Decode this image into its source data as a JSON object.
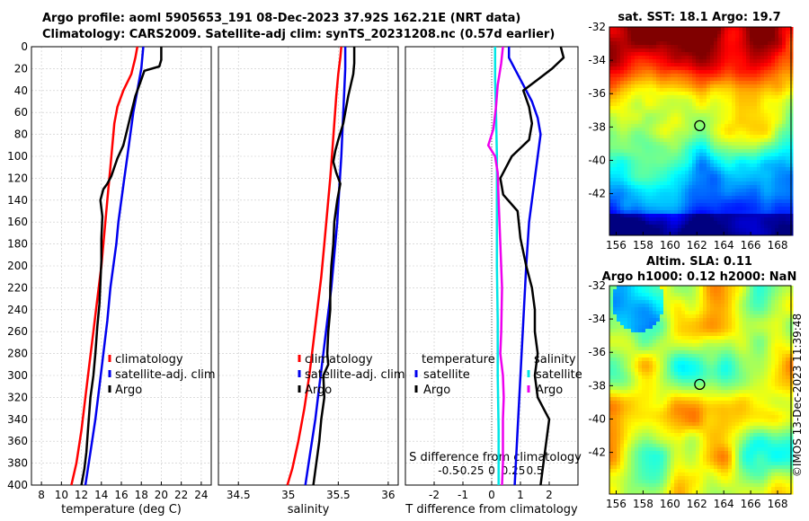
{
  "title": {
    "line1": "Argo profile: aoml 5905653_191 08-Dec-2023 37.92S 162.21E (NRT data)",
    "line2": "Climatology: CARS2009. Satellite-adj clim: synTS_20231208.nc (0.57d earlier)"
  },
  "credit": "©IMOS 13-Dec-2023 11:39:48",
  "colors": {
    "clim": "#ff0000",
    "sat": "#0000ee",
    "argo": "#000000",
    "sal_sat": "#00e5e5",
    "sal_argo": "#ee00ee"
  },
  "chart_data": [
    {
      "type": "line",
      "name": "temperature-profile",
      "xlabel": "temperature (deg C)",
      "ylabel": "",
      "xlim": [
        7,
        25
      ],
      "ylim": [
        400,
        0
      ],
      "xticks": [
        8,
        10,
        12,
        14,
        16,
        18,
        20,
        22,
        24
      ],
      "yticks": [
        0,
        20,
        40,
        60,
        80,
        100,
        120,
        140,
        160,
        180,
        200,
        220,
        240,
        260,
        280,
        300,
        320,
        340,
        360,
        380,
        400
      ],
      "legend": [
        "climatology",
        "satellite-adj. clim",
        "Argo"
      ],
      "series": [
        {
          "name": "climatology",
          "color_key": "clim",
          "points": [
            [
              17.6,
              0
            ],
            [
              17.4,
              10
            ],
            [
              17.0,
              25
            ],
            [
              16.2,
              40
            ],
            [
              15.6,
              55
            ],
            [
              15.3,
              70
            ],
            [
              15.1,
              90
            ],
            [
              14.9,
              110
            ],
            [
              14.6,
              140
            ],
            [
              14.3,
              170
            ],
            [
              14.0,
              200
            ],
            [
              13.6,
              230
            ],
            [
              13.2,
              260
            ],
            [
              12.8,
              290
            ],
            [
              12.4,
              320
            ],
            [
              12.0,
              350
            ],
            [
              11.5,
              380
            ],
            [
              11.0,
              400
            ]
          ]
        },
        {
          "name": "satellite-adj. clim",
          "color_key": "sat",
          "points": [
            [
              18.2,
              0
            ],
            [
              18.0,
              20
            ],
            [
              17.6,
              40
            ],
            [
              17.2,
              60
            ],
            [
              16.9,
              80
            ],
            [
              16.6,
              100
            ],
            [
              16.3,
              120
            ],
            [
              16.0,
              140
            ],
            [
              15.7,
              160
            ],
            [
              15.5,
              180
            ],
            [
              15.2,
              200
            ],
            [
              14.9,
              220
            ],
            [
              14.6,
              250
            ],
            [
              14.2,
              280
            ],
            [
              13.8,
              310
            ],
            [
              13.4,
              340
            ],
            [
              12.9,
              370
            ],
            [
              12.4,
              400
            ]
          ]
        },
        {
          "name": "Argo",
          "color_key": "argo",
          "points": [
            [
              20.0,
              0
            ],
            [
              20.0,
              12
            ],
            [
              19.8,
              18
            ],
            [
              18.3,
              22
            ],
            [
              18.0,
              30
            ],
            [
              17.4,
              45
            ],
            [
              17.0,
              60
            ],
            [
              16.6,
              75
            ],
            [
              16.2,
              90
            ],
            [
              15.6,
              102
            ],
            [
              15.3,
              110
            ],
            [
              15.0,
              118
            ],
            [
              14.6,
              125
            ],
            [
              14.2,
              130
            ],
            [
              13.9,
              140
            ],
            [
              14.1,
              155
            ],
            [
              14.0,
              175
            ],
            [
              14.0,
              195
            ],
            [
              13.9,
              215
            ],
            [
              13.8,
              235
            ],
            [
              13.6,
              255
            ],
            [
              13.4,
              280
            ],
            [
              13.2,
              300
            ],
            [
              12.9,
              320
            ],
            [
              12.7,
              345
            ],
            [
              12.5,
              370
            ],
            [
              12.3,
              385
            ],
            [
              12.0,
              400
            ]
          ]
        }
      ]
    },
    {
      "type": "line",
      "name": "salinity-profile",
      "xlabel": "salinity",
      "ylabel": "",
      "xlim": [
        34.3,
        36.1
      ],
      "ylim": [
        400,
        0
      ],
      "xticks": [
        34.5,
        35,
        35.5,
        36
      ],
      "legend": [
        "climatology",
        "satellite-adj. clim",
        "Argo"
      ],
      "series": [
        {
          "name": "climatology",
          "color_key": "clim",
          "points": [
            [
              35.53,
              0
            ],
            [
              35.52,
              10
            ],
            [
              35.5,
              25
            ],
            [
              35.48,
              45
            ],
            [
              35.46,
              70
            ],
            [
              35.44,
              95
            ],
            [
              35.42,
              120
            ],
            [
              35.39,
              150
            ],
            [
              35.36,
              180
            ],
            [
              35.33,
              210
            ],
            [
              35.29,
              240
            ],
            [
              35.25,
              270
            ],
            [
              35.21,
              300
            ],
            [
              35.16,
              330
            ],
            [
              35.1,
              360
            ],
            [
              35.04,
              385
            ],
            [
              34.99,
              400
            ]
          ]
        },
        {
          "name": "satellite-adj. clim",
          "color_key": "sat",
          "points": [
            [
              35.57,
              0
            ],
            [
              35.57,
              20
            ],
            [
              35.56,
              40
            ],
            [
              35.55,
              60
            ],
            [
              35.54,
              80
            ],
            [
              35.53,
              100
            ],
            [
              35.51,
              130
            ],
            [
              35.49,
              160
            ],
            [
              35.46,
              190
            ],
            [
              35.43,
              220
            ],
            [
              35.39,
              250
            ],
            [
              35.35,
              280
            ],
            [
              35.31,
              310
            ],
            [
              35.27,
              340
            ],
            [
              35.22,
              370
            ],
            [
              35.17,
              400
            ]
          ]
        },
        {
          "name": "Argo",
          "color_key": "argo",
          "points": [
            [
              35.66,
              0
            ],
            [
              35.66,
              15
            ],
            [
              35.65,
              25
            ],
            [
              35.6,
              45
            ],
            [
              35.55,
              70
            ],
            [
              35.5,
              85
            ],
            [
              35.47,
              95
            ],
            [
              35.45,
              105
            ],
            [
              35.48,
              115
            ],
            [
              35.52,
              125
            ],
            [
              35.49,
              140
            ],
            [
              35.46,
              160
            ],
            [
              35.45,
              180
            ],
            [
              35.43,
              200
            ],
            [
              35.42,
              220
            ],
            [
              35.42,
              240
            ],
            [
              35.4,
              260
            ],
            [
              35.39,
              280
            ],
            [
              35.4,
              290
            ],
            [
              35.35,
              300
            ],
            [
              35.36,
              320
            ],
            [
              35.33,
              340
            ],
            [
              35.31,
              360
            ],
            [
              35.28,
              380
            ],
            [
              35.25,
              400
            ]
          ]
        }
      ]
    },
    {
      "type": "line",
      "name": "difference-from-climatology",
      "xlabel": "T difference from climatology",
      "x2label": "S difference from climatology",
      "xlim": [
        -3,
        3
      ],
      "ylim": [
        400,
        0
      ],
      "xticks": [
        -2,
        -1,
        0,
        1,
        2
      ],
      "x2ticks": [
        -0.5,
        -0.25,
        0,
        0.25,
        0.5
      ],
      "x2ticklabels": [
        "-0.5",
        "-0.25",
        "0",
        "0.25",
        "0.5"
      ],
      "legend_left_title": "temperature",
      "legend_right_title": "salinity",
      "legend_left": [
        "satellite",
        "Argo"
      ],
      "legend_right": [
        "satellite",
        "Argo"
      ],
      "series": [
        {
          "name": "temperature satellite",
          "color_key": "sat",
          "points": [
            [
              0.6,
              0
            ],
            [
              0.6,
              10
            ],
            [
              0.8,
              20
            ],
            [
              1.0,
              30
            ],
            [
              1.4,
              50
            ],
            [
              1.6,
              65
            ],
            [
              1.7,
              80
            ],
            [
              1.6,
              100
            ],
            [
              1.5,
              120
            ],
            [
              1.4,
              140
            ],
            [
              1.3,
              160
            ],
            [
              1.2,
              200
            ],
            [
              1.1,
              250
            ],
            [
              1.0,
              300
            ],
            [
              0.9,
              350
            ],
            [
              0.8,
              400
            ]
          ]
        },
        {
          "name": "temperature Argo",
          "color_key": "argo",
          "points": [
            [
              2.4,
              0
            ],
            [
              2.5,
              10
            ],
            [
              2.1,
              20
            ],
            [
              1.6,
              30
            ],
            [
              1.1,
              40
            ],
            [
              1.3,
              55
            ],
            [
              1.4,
              70
            ],
            [
              1.3,
              85
            ],
            [
              0.7,
              100
            ],
            [
              0.5,
              110
            ],
            [
              0.3,
              120
            ],
            [
              0.4,
              135
            ],
            [
              0.9,
              150
            ],
            [
              1.0,
              175
            ],
            [
              1.2,
              200
            ],
            [
              1.4,
              220
            ],
            [
              1.5,
              240
            ],
            [
              1.5,
              260
            ],
            [
              1.6,
              280
            ],
            [
              1.5,
              300
            ],
            [
              1.6,
              320
            ],
            [
              2.0,
              340
            ],
            [
              1.9,
              360
            ],
            [
              1.8,
              380
            ],
            [
              1.7,
              400
            ]
          ]
        },
        {
          "name": "salinity satellite",
          "color_key": "sal_sat",
          "points": [
            [
              0.04,
              0
            ],
            [
              0.04,
              30
            ],
            [
              0.05,
              60
            ],
            [
              0.06,
              100
            ],
            [
              0.06,
              150
            ],
            [
              0.06,
              200
            ],
            [
              0.07,
              250
            ],
            [
              0.07,
              300
            ],
            [
              0.08,
              350
            ],
            [
              0.08,
              400
            ]
          ]
        },
        {
          "name": "salinity Argo",
          "color_key": "sal_argo",
          "points": [
            [
              0.13,
              0
            ],
            [
              0.11,
              15
            ],
            [
              0.07,
              35
            ],
            [
              0.05,
              55
            ],
            [
              0.02,
              75
            ],
            [
              -0.02,
              85
            ],
            [
              -0.04,
              90
            ],
            [
              0.0,
              95
            ],
            [
              0.04,
              100
            ],
            [
              0.07,
              115
            ],
            [
              0.08,
              140
            ],
            [
              0.1,
              180
            ],
            [
              0.12,
              220
            ],
            [
              0.11,
              260
            ],
            [
              0.1,
              280
            ],
            [
              0.13,
              300
            ],
            [
              0.14,
              320
            ],
            [
              0.13,
              340
            ],
            [
              0.13,
              360
            ],
            [
              0.13,
              380
            ],
            [
              0.12,
              400
            ]
          ]
        }
      ]
    },
    {
      "type": "heatmap",
      "name": "satellite-sst-map",
      "title": "sat. SST: 18.1 Argo: 19.7",
      "xticks": [
        156,
        158,
        160,
        162,
        164,
        166,
        168
      ],
      "yticks": [
        -32,
        -34,
        -36,
        -38,
        -40,
        -42
      ],
      "xlim": [
        155.5,
        169
      ],
      "ylim": [
        -44.5,
        -32
      ],
      "argo_position": [
        162.21,
        -37.92
      ]
    },
    {
      "type": "heatmap",
      "name": "altimetry-sla-map",
      "title_line1": "Altim. SLA: 0.11",
      "title_line2": "Argo h1000: 0.12 h2000: NaN",
      "xticks": [
        156,
        158,
        160,
        162,
        164,
        166,
        168
      ],
      "yticks": [
        -32,
        -34,
        -36,
        -38,
        -40,
        -42
      ],
      "xlim": [
        155.5,
        169
      ],
      "ylim": [
        -44.5,
        -32
      ],
      "argo_position": [
        162.21,
        -37.92
      ]
    }
  ]
}
